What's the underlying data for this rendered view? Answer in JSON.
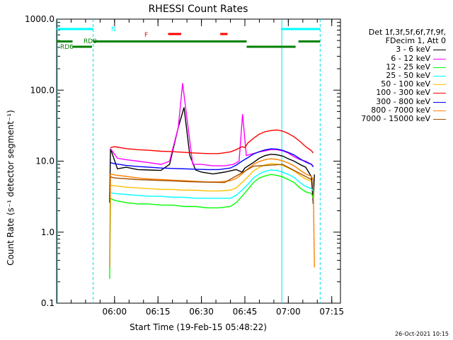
{
  "chart_data": {
    "type": "line",
    "title": "RHESSI Count Rates",
    "xlabel": "Start Time (19-Feb-15 05:48:22)",
    "ylabel": "Count Rate (s⁻¹ detector segment⁻¹)",
    "yscale": "log",
    "ylim": [
      0.1,
      1000
    ],
    "yticks": [
      "0.1",
      "1.0",
      "10.0",
      "100.0",
      "1000.0"
    ],
    "xlim_min": [
      -8,
      90
    ],
    "xticks": [
      "06:00",
      "06:15",
      "06:30",
      "06:45",
      "07:00",
      "07:15"
    ],
    "xtick_min": [
      12,
      27,
      42,
      57,
      72,
      87
    ],
    "grid": false,
    "legend_position": "right",
    "legend_header": [
      "Det 1f,3f,5f,6f,7f,9f,",
      "FDecim 1, Att 0"
    ],
    "timestamp": "26-Oct-2021 10:15",
    "series": [
      {
        "name": "3 - 6 keV",
        "color": "#000000",
        "t": [
          10.3,
          10.6,
          13,
          16,
          20,
          24,
          28,
          31,
          34,
          36,
          38,
          40,
          42,
          46,
          50,
          52,
          54,
          56,
          57,
          60,
          62,
          64,
          66,
          68,
          70,
          72,
          74,
          76,
          78,
          80,
          80.6,
          81
        ],
        "y": [
          2.6,
          15,
          7.8,
          8.2,
          7.6,
          7.5,
          7.4,
          9,
          30,
          57,
          12,
          7.5,
          7.0,
          6.6,
          7.0,
          7.3,
          7.6,
          7.0,
          8.0,
          9.6,
          11.0,
          12.0,
          12.5,
          12.3,
          11.8,
          10.8,
          10.0,
          9.0,
          8.2,
          6.0,
          2.5,
          6.5
        ]
      },
      {
        "name": "6 - 12 keV",
        "color": "#ff00ff",
        "t": [
          10.6,
          13,
          16,
          20,
          24,
          28,
          31,
          34,
          35.5,
          37,
          39,
          42,
          46,
          50,
          53,
          55,
          56.2,
          57.5,
          59,
          62,
          64,
          66,
          68,
          70,
          72,
          74,
          76,
          78,
          80,
          80.6
        ],
        "y": [
          15,
          11,
          10.5,
          10.0,
          9.5,
          9.0,
          10,
          30,
          125,
          40,
          9.0,
          9.0,
          8.6,
          8.6,
          9.0,
          10.0,
          46,
          12,
          12.5,
          13.5,
          14.0,
          14.5,
          14.5,
          14.0,
          13.0,
          11.5,
          10.5,
          10.0,
          9.0,
          8.5
        ]
      },
      {
        "name": "12 - 25 keV",
        "color": "#00ff00",
        "t": [
          10.3,
          10.6,
          12,
          16,
          20,
          24,
          28,
          32,
          36,
          40,
          44,
          48,
          52,
          54,
          56,
          58,
          60,
          62,
          64,
          66,
          68,
          70,
          72,
          74,
          76,
          78,
          80,
          80.6
        ],
        "y": [
          0.22,
          3.0,
          2.8,
          2.6,
          2.5,
          2.5,
          2.4,
          2.4,
          2.3,
          2.3,
          2.2,
          2.2,
          2.3,
          2.6,
          3.2,
          4.0,
          5.0,
          5.8,
          6.2,
          6.5,
          6.3,
          6.0,
          5.5,
          5.0,
          4.2,
          3.7,
          3.5,
          3.0
        ]
      },
      {
        "name": "25 - 50 keV",
        "color": "#00ffff",
        "t": [
          10.6,
          12,
          16,
          20,
          24,
          28,
          32,
          36,
          40,
          44,
          48,
          52,
          54,
          56,
          58,
          60,
          62,
          64,
          66,
          68,
          70,
          72,
          74,
          76,
          78,
          80,
          80.6
        ],
        "y": [
          3.6,
          3.5,
          3.4,
          3.3,
          3.2,
          3.2,
          3.1,
          3.1,
          3.0,
          3.0,
          3.0,
          3.0,
          3.3,
          3.9,
          4.7,
          5.8,
          6.6,
          7.2,
          7.5,
          7.4,
          7.0,
          6.5,
          5.9,
          5.0,
          4.4,
          4.1,
          3.8
        ]
      },
      {
        "name": "50 - 100 keV",
        "color": "#ffbf00",
        "t": [
          10.6,
          12,
          16,
          20,
          24,
          28,
          32,
          36,
          40,
          44,
          48,
          52,
          54,
          56,
          58,
          60,
          62,
          64,
          66,
          68,
          70,
          72,
          74,
          76,
          78,
          80
        ],
        "y": [
          4.6,
          4.5,
          4.3,
          4.2,
          4.1,
          4.0,
          4.0,
          3.9,
          3.9,
          3.8,
          3.8,
          3.9,
          4.2,
          5.0,
          6.0,
          7.3,
          8.2,
          8.9,
          9.2,
          9.1,
          8.7,
          8.0,
          7.3,
          6.3,
          5.6,
          5.2
        ]
      },
      {
        "name": "100 - 300 keV",
        "color": "#ff0000",
        "t": [
          10.6,
          12,
          16,
          20,
          24,
          28,
          32,
          36,
          40,
          44,
          48,
          52,
          54,
          56,
          57,
          58,
          60,
          62,
          64,
          66,
          68,
          70,
          72,
          74,
          76,
          78,
          80,
          80.6
        ],
        "y": [
          15.5,
          16,
          15.0,
          14.5,
          14.2,
          13.8,
          13.6,
          13.3,
          13.0,
          12.8,
          12.8,
          13.5,
          14.5,
          16,
          15.5,
          18,
          21,
          24,
          26,
          27,
          27.5,
          26.5,
          24.5,
          22,
          19,
          16,
          14,
          13
        ]
      },
      {
        "name": "300 - 800 keV",
        "color": "#0000ff",
        "t": [
          10.6,
          12,
          16,
          20,
          24,
          28,
          32,
          36,
          40,
          44,
          48,
          52,
          54,
          56,
          58,
          60,
          62,
          64,
          66,
          68,
          70,
          72,
          74,
          76,
          78,
          80,
          80.6
        ],
        "y": [
          9.5,
          9.2,
          8.7,
          8.4,
          8.2,
          8.0,
          7.9,
          7.8,
          7.7,
          7.6,
          7.6,
          8.0,
          8.8,
          10.0,
          11.2,
          12.6,
          13.6,
          14.4,
          14.9,
          14.8,
          14.2,
          13.3,
          12.2,
          10.8,
          9.7,
          9.0,
          8.3
        ]
      },
      {
        "name": "800 - 7000 keV",
        "color": "#ff8000",
        "t": [
          10.3,
          10.6,
          12,
          16,
          20,
          24,
          28,
          32,
          36,
          40,
          44,
          48,
          52,
          54,
          56,
          58,
          60,
          62,
          64,
          66,
          68,
          70,
          72,
          74,
          76,
          78,
          80,
          80.6,
          81
        ],
        "y": [
          0.32,
          6.6,
          6.4,
          6.1,
          5.8,
          5.6,
          5.5,
          5.4,
          5.3,
          5.2,
          5.1,
          5.1,
          5.3,
          5.7,
          6.6,
          7.8,
          9.0,
          9.9,
          10.5,
          10.8,
          10.6,
          10.1,
          9.4,
          8.6,
          7.5,
          6.6,
          6.1,
          5.5,
          0.32
        ]
      },
      {
        "name": "7000 - 15000 keV",
        "color": "#a05000",
        "t": [
          10.6,
          12,
          20,
          30,
          40,
          50,
          60,
          70,
          80
        ],
        "y": [
          6.0,
          5.8,
          5.5,
          5.3,
          5.1,
          5.0,
          8.5,
          9.0,
          5.5
        ]
      }
    ],
    "annotations": {
      "saa_label": "N",
      "saa_intervals": [
        [
          -8,
          4.6
        ],
        [
          69.5,
          83
        ]
      ],
      "flare_label": "F",
      "flare_intervals": [
        [
          30.5,
          35
        ],
        [
          48.5,
          51
        ]
      ],
      "night_labels": [
        "RD0",
        "RD6"
      ],
      "night_level1_intervals": [
        [
          -8,
          -2.5
        ],
        [
          4.6,
          57.6
        ],
        [
          75.5,
          83
        ]
      ],
      "night_level2_intervals": [
        [
          -2.5,
          4.2
        ],
        [
          57.6,
          74.5
        ]
      ],
      "vlines_cyan_solid_min": [
        -8,
        69.5
      ],
      "vlines_cyan_dashed_min": [
        4.6,
        83
      ]
    }
  }
}
